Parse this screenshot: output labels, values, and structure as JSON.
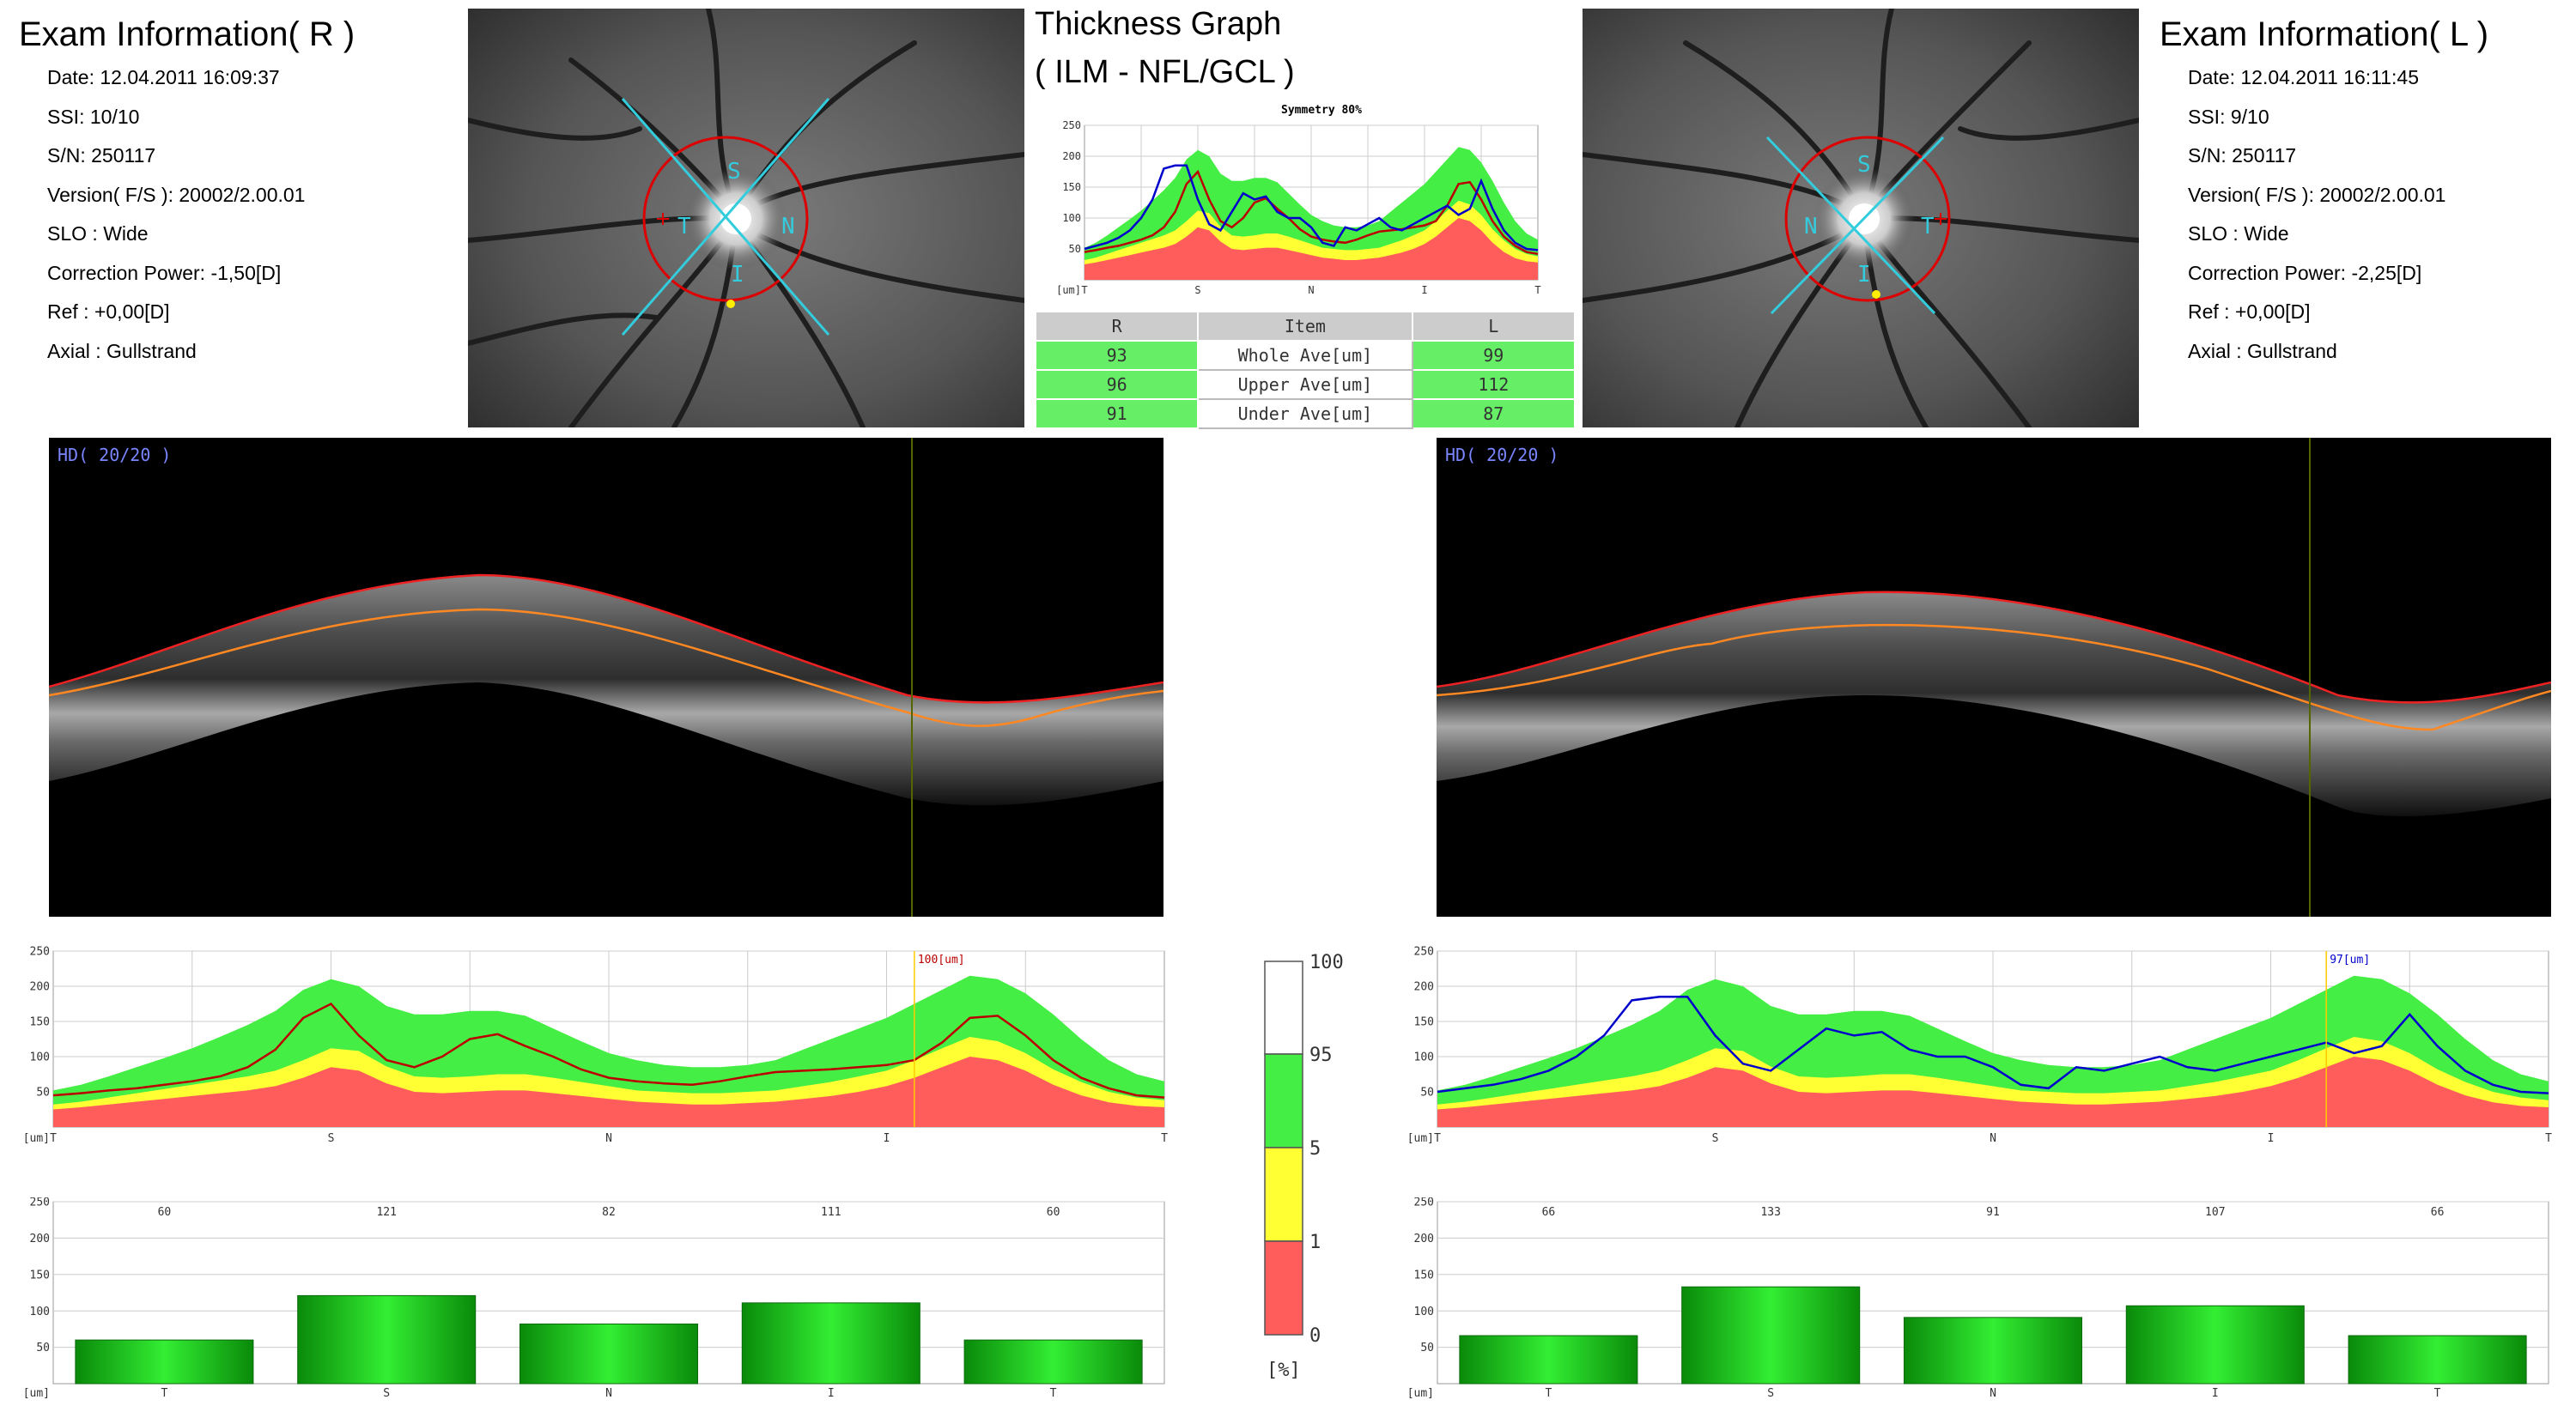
{
  "exam_right": {
    "title": "Exam Information( R )",
    "date": "Date: 12.04.2011 16:09:37",
    "ssi": "SSI: 10/10",
    "sn": "S/N: 250117",
    "version": "Version( F/S ): 20002/2.00.01",
    "slo": "SLO : Wide",
    "correction": "Correction Power: -1,50[D]",
    "ref": "Ref : +0,00[D]",
    "axial": "Axial : Gullstrand"
  },
  "exam_left": {
    "title": "Exam Information( L )",
    "date": "Date: 12.04.2011 16:11:45",
    "ssi": "SSI:  9/10",
    "sn": "S/N: 250117",
    "version": "Version( F/S ): 20002/2.00.01",
    "slo": "SLO : Wide",
    "correction": "Correction Power: -2,25[D]",
    "ref": "Ref : +0,00[D]",
    "axial": "Axial : Gullstrand"
  },
  "thickness": {
    "title_line1": "Thickness Graph",
    "title_line2": "( ILM - NFL/GCL )",
    "symmetry": "Symmetry 80%"
  },
  "avg_table": {
    "header": {
      "r": "R",
      "item": "Item",
      "l": "L"
    },
    "rows": [
      {
        "r": "93",
        "item": "Whole Ave[um]",
        "l": "99"
      },
      {
        "r": "96",
        "item": "Upper Ave[um]",
        "l": "112"
      },
      {
        "r": "91",
        "item": "Under Ave[um]",
        "l": "87"
      }
    ]
  },
  "fundus_right": {
    "s": "S",
    "n": "N",
    "i": "I",
    "t": "T"
  },
  "fundus_left": {
    "s": "S",
    "n": "N",
    "i": "I",
    "t": "T"
  },
  "bscan_right": {
    "label": "HD( 20/20 )"
  },
  "bscan_left": {
    "label": "HD( 20/20 )"
  },
  "colors": {
    "normal": "#44ee44",
    "borderline": "#ffff33",
    "abnormal": "#ff5c5c",
    "right_eye": "#bb0000",
    "left_eye": "#0000cc"
  },
  "colorbar": {
    "ticks": [
      "100",
      "95",
      "5",
      "1",
      "0"
    ],
    "unit": "[%]"
  },
  "chart_data": [
    {
      "id": "profile_right",
      "type": "area",
      "ylim": [
        0,
        250
      ],
      "yticks": [
        "250",
        "200",
        "150",
        "100",
        "50"
      ],
      "unit_label": "[um]",
      "xticks": [
        "T",
        "S",
        "N",
        "I",
        "T"
      ],
      "cursor_label": "100[um]",
      "bands": {
        "red": [
          25,
          28,
          32,
          36,
          40,
          44,
          48,
          52,
          58,
          70,
          85,
          80,
          62,
          50,
          48,
          50,
          52,
          52,
          48,
          44,
          40,
          36,
          34,
          32,
          32,
          34,
          36,
          40,
          44,
          50,
          58,
          70,
          85,
          100,
          95,
          80,
          60,
          45,
          35,
          30,
          28
        ],
        "yellow": [
          32,
          36,
          42,
          48,
          54,
          60,
          66,
          72,
          80,
          95,
          112,
          108,
          86,
          72,
          70,
          72,
          75,
          75,
          70,
          64,
          58,
          52,
          50,
          48,
          48,
          50,
          52,
          58,
          64,
          72,
          80,
          95,
          112,
          128,
          122,
          105,
          82,
          64,
          50,
          42,
          38
        ],
        "green": [
          52,
          60,
          72,
          85,
          98,
          112,
          128,
          145,
          165,
          195,
          210,
          200,
          172,
          160,
          160,
          165,
          165,
          158,
          140,
          122,
          105,
          95,
          88,
          85,
          85,
          88,
          95,
          110,
          125,
          140,
          155,
          175,
          195,
          215,
          210,
          190,
          160,
          125,
          95,
          75,
          65
        ]
      },
      "series": [
        {
          "name": "R",
          "values": [
            45,
            48,
            52,
            55,
            60,
            65,
            72,
            85,
            110,
            155,
            175,
            130,
            95,
            85,
            100,
            125,
            132,
            115,
            100,
            82,
            70,
            65,
            62,
            60,
            65,
            72,
            78,
            80,
            82,
            85,
            88,
            95,
            120,
            155,
            158,
            130,
            95,
            70,
            55,
            45,
            42
          ]
        }
      ]
    },
    {
      "id": "profile_left",
      "type": "area",
      "ylim": [
        0,
        250
      ],
      "yticks": [
        "250",
        "200",
        "150",
        "100",
        "50"
      ],
      "unit_label": "[um]",
      "xticks": [
        "T",
        "S",
        "N",
        "I",
        "T"
      ],
      "cursor_label": "97[um]",
      "bands": {
        "red": [
          25,
          28,
          32,
          36,
          40,
          44,
          48,
          52,
          58,
          70,
          85,
          80,
          62,
          50,
          48,
          50,
          52,
          52,
          48,
          44,
          40,
          36,
          34,
          32,
          32,
          34,
          36,
          40,
          44,
          50,
          58,
          70,
          85,
          100,
          95,
          80,
          60,
          45,
          35,
          30,
          28
        ],
        "yellow": [
          32,
          36,
          42,
          48,
          54,
          60,
          66,
          72,
          80,
          95,
          112,
          108,
          86,
          72,
          70,
          72,
          75,
          75,
          70,
          64,
          58,
          52,
          50,
          48,
          48,
          50,
          52,
          58,
          64,
          72,
          80,
          95,
          112,
          128,
          122,
          105,
          82,
          64,
          50,
          42,
          38
        ],
        "green": [
          52,
          60,
          72,
          85,
          98,
          112,
          128,
          145,
          165,
          195,
          210,
          200,
          172,
          160,
          160,
          165,
          165,
          158,
          140,
          122,
          105,
          95,
          88,
          85,
          85,
          88,
          95,
          110,
          125,
          140,
          155,
          175,
          195,
          215,
          210,
          190,
          160,
          125,
          95,
          75,
          65
        ]
      },
      "series": [
        {
          "name": "L",
          "values": [
            50,
            55,
            60,
            68,
            80,
            100,
            130,
            180,
            185,
            185,
            130,
            90,
            80,
            110,
            140,
            130,
            135,
            110,
            100,
            100,
            85,
            60,
            55,
            85,
            80,
            90,
            100,
            85,
            80,
            90,
            100,
            110,
            120,
            105,
            115,
            160,
            115,
            80,
            60,
            50,
            48
          ]
        }
      ]
    },
    {
      "id": "symmetry_graph",
      "type": "line",
      "title": "Symmetry 80%",
      "ylim": [
        0,
        250
      ],
      "yticks": [
        "250",
        "200",
        "150",
        "100",
        "50"
      ],
      "unit_label": "[um]",
      "xticks": [
        "T",
        "S",
        "N",
        "I",
        "T"
      ],
      "series": [
        {
          "name": "R",
          "values": [
            45,
            48,
            52,
            55,
            60,
            65,
            72,
            85,
            110,
            155,
            175,
            130,
            95,
            85,
            100,
            125,
            132,
            115,
            100,
            82,
            70,
            65,
            62,
            60,
            65,
            72,
            78,
            80,
            82,
            85,
            88,
            95,
            120,
            155,
            158,
            130,
            95,
            70,
            55,
            45,
            42
          ]
        },
        {
          "name": "L",
          "values": [
            50,
            55,
            60,
            68,
            80,
            100,
            130,
            180,
            185,
            185,
            130,
            90,
            80,
            110,
            140,
            130,
            135,
            110,
            100,
            100,
            85,
            60,
            55,
            85,
            80,
            90,
            100,
            85,
            80,
            90,
            100,
            110,
            120,
            105,
            115,
            160,
            115,
            80,
            60,
            50,
            48
          ]
        }
      ]
    },
    {
      "id": "bars_right",
      "type": "bar",
      "ylim": [
        0,
        250
      ],
      "yticks": [
        "250",
        "200",
        "150",
        "100",
        "50"
      ],
      "unit_label": "[um]",
      "categories": [
        "T",
        "S",
        "N",
        "I",
        "T"
      ],
      "values": [
        60,
        121,
        82,
        111,
        60
      ]
    },
    {
      "id": "bars_left",
      "type": "bar",
      "ylim": [
        0,
        250
      ],
      "yticks": [
        "250",
        "200",
        "150",
        "100",
        "50"
      ],
      "unit_label": "[um]",
      "categories": [
        "T",
        "S",
        "N",
        "I",
        "T"
      ],
      "values": [
        66,
        133,
        91,
        107,
        66
      ]
    }
  ]
}
